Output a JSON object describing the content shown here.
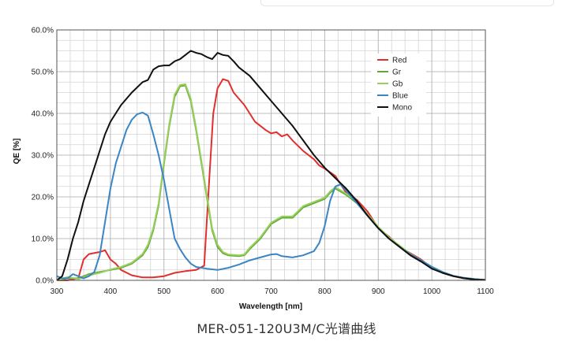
{
  "caption": "MER-051-120U3M/C光谱曲线",
  "chart_data": {
    "type": "line",
    "xlabel": "Wavelength [nm]",
    "ylabel": "QE [%]",
    "xlim": [
      300,
      1100
    ],
    "ylim": [
      0,
      60
    ],
    "x_ticks": [
      300,
      400,
      500,
      600,
      700,
      800,
      900,
      1000,
      1100
    ],
    "y_ticks": [
      0,
      10,
      20,
      30,
      40,
      50,
      60
    ],
    "y_tick_labels": [
      "0.0%",
      "10.0%",
      "20.0%",
      "30.0%",
      "40.0%",
      "50.0%",
      "60.0%"
    ],
    "x_tick_labels": [
      "300",
      "400",
      "500",
      "600",
      "700",
      "800",
      "900",
      "1000",
      "1100"
    ],
    "grid": true,
    "legend_position": "top-right",
    "series": [
      {
        "name": "Red",
        "color": "#e0302e",
        "points": [
          [
            300,
            0
          ],
          [
            320,
            0
          ],
          [
            340,
            0.5
          ],
          [
            350,
            5
          ],
          [
            360,
            6.3
          ],
          [
            380,
            6.8
          ],
          [
            390,
            7.2
          ],
          [
            400,
            5
          ],
          [
            410,
            4
          ],
          [
            420,
            2.5
          ],
          [
            440,
            1.2
          ],
          [
            460,
            0.7
          ],
          [
            480,
            0.7
          ],
          [
            500,
            1
          ],
          [
            520,
            1.8
          ],
          [
            540,
            2.2
          ],
          [
            560,
            2.5
          ],
          [
            575,
            3.5
          ],
          [
            585,
            25
          ],
          [
            592,
            40
          ],
          [
            600,
            46
          ],
          [
            610,
            48.2
          ],
          [
            620,
            47.8
          ],
          [
            630,
            45
          ],
          [
            650,
            42
          ],
          [
            670,
            38
          ],
          [
            690,
            36
          ],
          [
            700,
            35.2
          ],
          [
            710,
            35.5
          ],
          [
            720,
            34.5
          ],
          [
            730,
            35
          ],
          [
            740,
            33.5
          ],
          [
            760,
            31
          ],
          [
            780,
            29
          ],
          [
            790,
            27.5
          ],
          [
            800,
            26.8
          ],
          [
            820,
            25
          ],
          [
            840,
            21
          ],
          [
            860,
            19.3
          ],
          [
            880,
            16.5
          ],
          [
            900,
            12.5
          ],
          [
            920,
            10.5
          ],
          [
            940,
            8
          ],
          [
            960,
            6.5
          ],
          [
            980,
            5
          ],
          [
            1000,
            3
          ],
          [
            1020,
            1.8
          ],
          [
            1040,
            1
          ],
          [
            1060,
            0.5
          ],
          [
            1080,
            0.2
          ],
          [
            1100,
            0.1
          ]
        ]
      },
      {
        "name": "Gr",
        "color": "#5fa832",
        "points": [
          [
            300,
            0
          ],
          [
            320,
            0.5
          ],
          [
            340,
            0.5
          ],
          [
            360,
            1.5
          ],
          [
            380,
            2
          ],
          [
            400,
            2.5
          ],
          [
            420,
            3
          ],
          [
            440,
            4
          ],
          [
            460,
            6
          ],
          [
            470,
            8
          ],
          [
            480,
            12
          ],
          [
            490,
            18
          ],
          [
            500,
            28
          ],
          [
            510,
            37
          ],
          [
            520,
            44
          ],
          [
            530,
            46.5
          ],
          [
            540,
            46.7
          ],
          [
            550,
            43
          ],
          [
            560,
            36
          ],
          [
            570,
            28
          ],
          [
            580,
            20
          ],
          [
            590,
            12
          ],
          [
            600,
            8
          ],
          [
            610,
            6.5
          ],
          [
            620,
            6
          ],
          [
            640,
            5.8
          ],
          [
            650,
            6
          ],
          [
            660,
            7.5
          ],
          [
            680,
            10
          ],
          [
            700,
            13.5
          ],
          [
            720,
            15
          ],
          [
            740,
            15
          ],
          [
            760,
            17.5
          ],
          [
            780,
            18.5
          ],
          [
            800,
            19.5
          ],
          [
            810,
            21
          ],
          [
            820,
            22
          ],
          [
            840,
            20.5
          ],
          [
            860,
            18.5
          ],
          [
            880,
            15.5
          ],
          [
            900,
            12.5
          ],
          [
            920,
            10
          ],
          [
            940,
            8
          ],
          [
            960,
            6
          ],
          [
            980,
            4.5
          ],
          [
            1000,
            3
          ],
          [
            1020,
            1.8
          ],
          [
            1040,
            1
          ],
          [
            1060,
            0.5
          ],
          [
            1080,
            0.2
          ],
          [
            1100,
            0.1
          ]
        ]
      },
      {
        "name": "Gb",
        "color": "#98cf5e",
        "points": [
          [
            300,
            0
          ],
          [
            320,
            0.8
          ],
          [
            340,
            0.3
          ],
          [
            360,
            1.2
          ],
          [
            380,
            1.8
          ],
          [
            400,
            2.6
          ],
          [
            420,
            3.2
          ],
          [
            440,
            4.2
          ],
          [
            460,
            6.3
          ],
          [
            470,
            8.5
          ],
          [
            480,
            12.5
          ],
          [
            490,
            18.5
          ],
          [
            500,
            28.5
          ],
          [
            510,
            37.5
          ],
          [
            520,
            44.5
          ],
          [
            530,
            46.8
          ],
          [
            540,
            47
          ],
          [
            550,
            43.5
          ],
          [
            560,
            36.5
          ],
          [
            570,
            28.5
          ],
          [
            580,
            20.5
          ],
          [
            590,
            12.5
          ],
          [
            600,
            8.5
          ],
          [
            610,
            6.8
          ],
          [
            620,
            6.2
          ],
          [
            640,
            6
          ],
          [
            650,
            6.2
          ],
          [
            660,
            7.8
          ],
          [
            680,
            10.3
          ],
          [
            700,
            13.8
          ],
          [
            720,
            15.3
          ],
          [
            740,
            15.3
          ],
          [
            760,
            17.8
          ],
          [
            780,
            18.8
          ],
          [
            800,
            19.8
          ],
          [
            810,
            21.3
          ],
          [
            820,
            22.3
          ],
          [
            840,
            20.8
          ],
          [
            860,
            18.8
          ],
          [
            880,
            15.8
          ],
          [
            900,
            12.8
          ],
          [
            920,
            10.3
          ],
          [
            940,
            8.3
          ],
          [
            960,
            6.3
          ],
          [
            980,
            4.8
          ],
          [
            1000,
            3.3
          ],
          [
            1020,
            2
          ],
          [
            1040,
            1.1
          ],
          [
            1060,
            0.6
          ],
          [
            1080,
            0.3
          ],
          [
            1100,
            0.1
          ]
        ]
      },
      {
        "name": "Blue",
        "color": "#3a85c5",
        "points": [
          [
            300,
            1
          ],
          [
            310,
            0.5
          ],
          [
            320,
            0.5
          ],
          [
            330,
            1.5
          ],
          [
            340,
            1
          ],
          [
            350,
            0.5
          ],
          [
            360,
            1
          ],
          [
            370,
            2
          ],
          [
            380,
            6
          ],
          [
            390,
            14
          ],
          [
            400,
            22
          ],
          [
            410,
            28
          ],
          [
            420,
            32
          ],
          [
            430,
            36
          ],
          [
            440,
            38.5
          ],
          [
            450,
            39.8
          ],
          [
            460,
            40.2
          ],
          [
            470,
            39.5
          ],
          [
            480,
            35
          ],
          [
            490,
            30
          ],
          [
            500,
            24
          ],
          [
            510,
            17
          ],
          [
            520,
            10
          ],
          [
            530,
            7.5
          ],
          [
            540,
            5.5
          ],
          [
            550,
            4
          ],
          [
            560,
            3.2
          ],
          [
            580,
            2.8
          ],
          [
            600,
            2.5
          ],
          [
            620,
            3
          ],
          [
            640,
            3.8
          ],
          [
            660,
            4.8
          ],
          [
            680,
            5.5
          ],
          [
            700,
            6.2
          ],
          [
            710,
            6.3
          ],
          [
            720,
            5.8
          ],
          [
            740,
            5.5
          ],
          [
            760,
            6
          ],
          [
            780,
            7
          ],
          [
            790,
            9
          ],
          [
            800,
            13
          ],
          [
            810,
            19
          ],
          [
            820,
            22.5
          ],
          [
            830,
            23
          ],
          [
            840,
            21.5
          ],
          [
            860,
            18.5
          ],
          [
            880,
            15.5
          ],
          [
            900,
            12.5
          ],
          [
            920,
            10
          ],
          [
            940,
            8
          ],
          [
            960,
            6.2
          ],
          [
            980,
            4.8
          ],
          [
            1000,
            3.2
          ],
          [
            1020,
            2
          ],
          [
            1040,
            1.1
          ],
          [
            1060,
            0.6
          ],
          [
            1080,
            0.3
          ],
          [
            1100,
            0.1
          ]
        ]
      },
      {
        "name": "Mono",
        "color": "#111111",
        "points": [
          [
            300,
            0
          ],
          [
            310,
            1
          ],
          [
            320,
            5
          ],
          [
            330,
            10
          ],
          [
            340,
            14
          ],
          [
            350,
            19
          ],
          [
            360,
            23
          ],
          [
            370,
            27
          ],
          [
            380,
            31
          ],
          [
            390,
            35
          ],
          [
            400,
            38
          ],
          [
            420,
            42
          ],
          [
            440,
            45
          ],
          [
            460,
            47.5
          ],
          [
            470,
            48
          ],
          [
            480,
            50.5
          ],
          [
            490,
            51.3
          ],
          [
            500,
            51.5
          ],
          [
            510,
            51.5
          ],
          [
            520,
            52.5
          ],
          [
            530,
            53
          ],
          [
            540,
            54
          ],
          [
            550,
            55
          ],
          [
            560,
            54.5
          ],
          [
            570,
            54.2
          ],
          [
            580,
            53.5
          ],
          [
            590,
            53
          ],
          [
            600,
            54.5
          ],
          [
            610,
            54
          ],
          [
            620,
            53.8
          ],
          [
            630,
            52.5
          ],
          [
            640,
            51
          ],
          [
            660,
            49
          ],
          [
            680,
            46
          ],
          [
            700,
            43
          ],
          [
            720,
            40
          ],
          [
            740,
            37
          ],
          [
            760,
            33.5
          ],
          [
            780,
            30
          ],
          [
            800,
            27
          ],
          [
            820,
            24.5
          ],
          [
            840,
            22
          ],
          [
            860,
            19
          ],
          [
            880,
            15.5
          ],
          [
            900,
            12.5
          ],
          [
            920,
            10
          ],
          [
            940,
            8
          ],
          [
            960,
            6
          ],
          [
            980,
            4.5
          ],
          [
            1000,
            2.8
          ],
          [
            1020,
            1.8
          ],
          [
            1040,
            1
          ],
          [
            1060,
            0.5
          ],
          [
            1080,
            0.2
          ],
          [
            1100,
            0.1
          ]
        ]
      }
    ]
  }
}
